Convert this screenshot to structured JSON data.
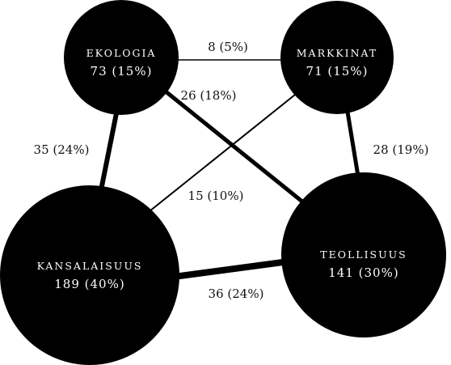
{
  "colors": {
    "node_fill": "#000000",
    "node_text": "#ffffff",
    "edge": "#000000",
    "label": "#111111"
  },
  "nodes": {
    "ekologia": {
      "name": "EKOLOGIA",
      "value": "73 (15%)"
    },
    "markkinat": {
      "name": "MARKKINAT",
      "value": "71 (15%)"
    },
    "kansalaisuus": {
      "name": "KANSALAISUUS",
      "value": "189 (40%)"
    },
    "teollisuus": {
      "name": "TEOLLISUUS",
      "value": "141 (30%)"
    }
  },
  "edges": {
    "ekologia_markkinat": {
      "label": "8 (5%)",
      "count": 8
    },
    "ekologia_teollisuus": {
      "label": "26 (18%)",
      "count": 26
    },
    "ekologia_kansalaisuus": {
      "label": "35 (24%)",
      "count": 35
    },
    "markkinat_teollisuus": {
      "label": "28 (19%)",
      "count": 28
    },
    "markkinat_kansalaisuus": {
      "label": "15 (10%)",
      "count": 15
    },
    "kansalaisuus_teollisuus": {
      "label": "36 (24%)",
      "count": 36
    }
  }
}
